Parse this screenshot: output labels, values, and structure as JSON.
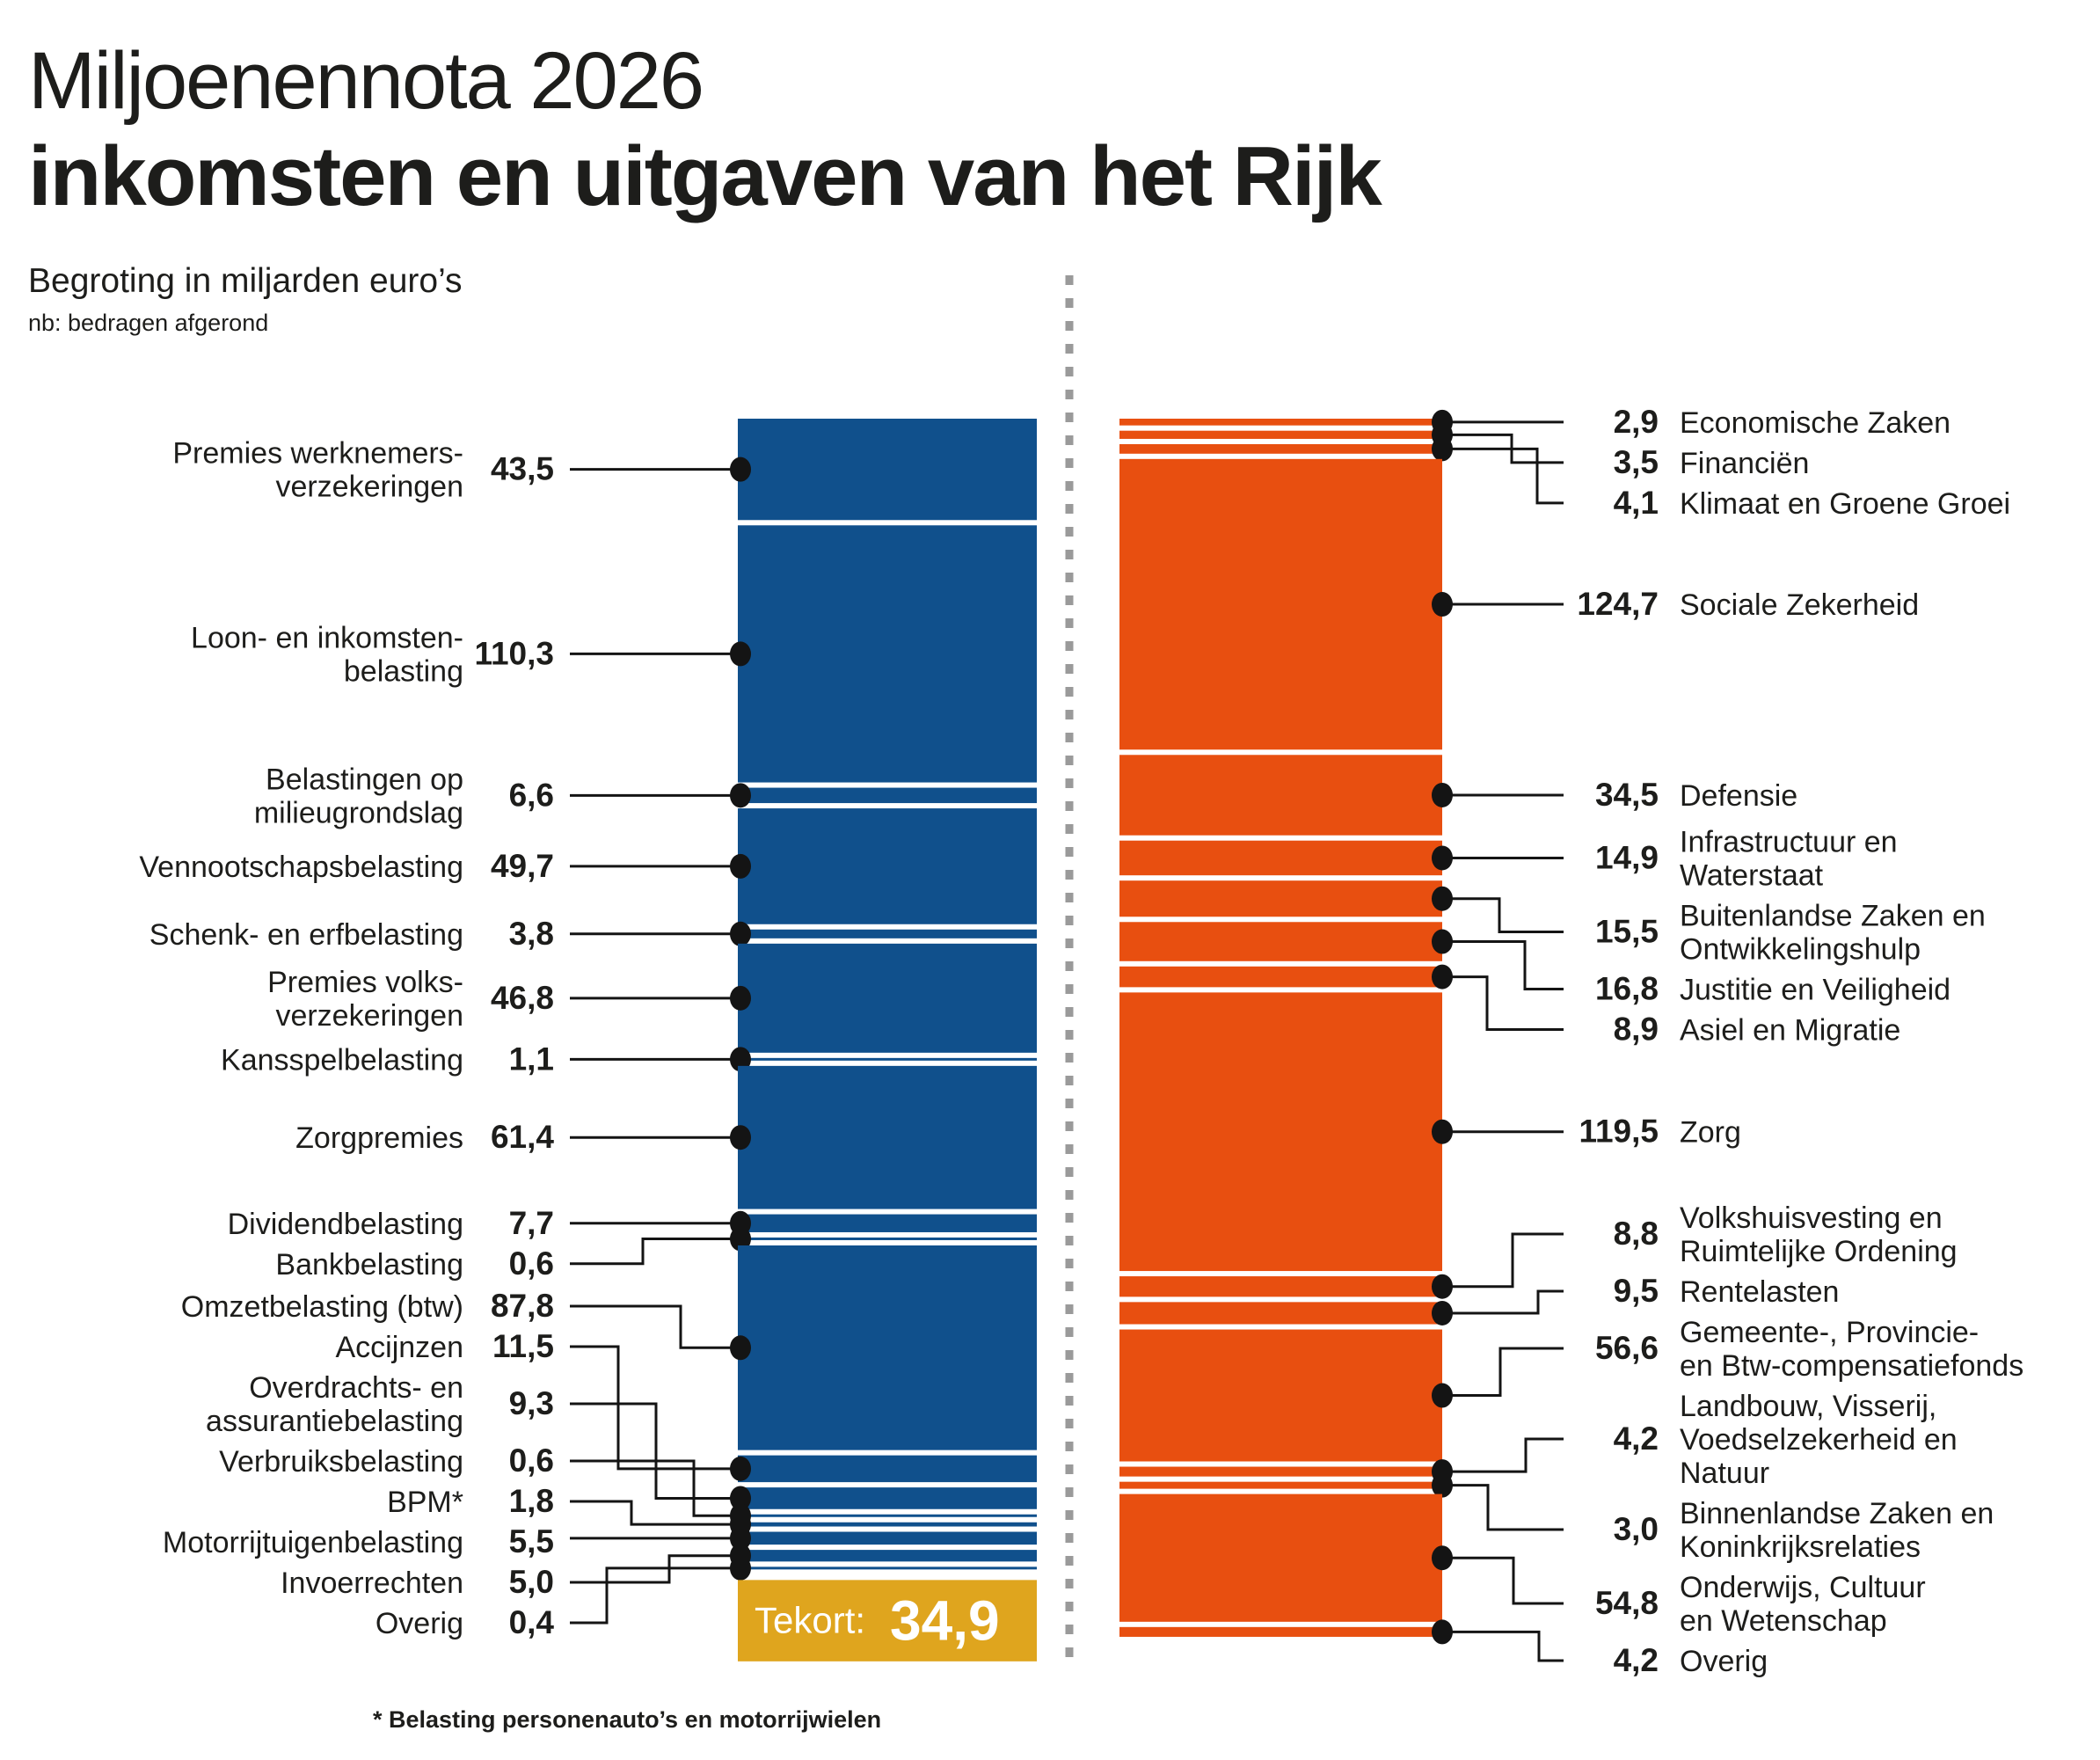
{
  "header": {
    "title_light": "Miljoenennota 2026",
    "title_bold": "inkomsten en uitgaven van het Rijk",
    "subtitle": "Begroting in miljarden euro’s",
    "note": "nb: bedragen afgerond"
  },
  "footnote": "* Belasting personenauto’s en motorrijwielen",
  "chart_data": {
    "type": "bar",
    "title": "Miljoenennota 2026 — inkomsten en uitgaven van het Rijk",
    "subtitle": "Begroting in miljarden euro’s (bedragen afgerond)",
    "unit": "miljarden euro's",
    "legend_position": "none",
    "grid": false,
    "colors": {
      "income": "#10508C",
      "expenses": "#E84F10",
      "deficit": "#DFA51E",
      "leader": "#141414",
      "divider": "#9A9A9A",
      "text": "#1D1D1B"
    },
    "income": {
      "name": "inkomsten",
      "items": [
        {
          "label": "Premies werknemers-\nverzekeringen",
          "value_text": "43,5",
          "value": 43.5
        },
        {
          "label": "Loon- en inkomsten-\nbelasting",
          "value_text": "110,3",
          "value": 110.3
        },
        {
          "label": "Belastingen op\nmilieugrondslag",
          "value_text": "6,6",
          "value": 6.6
        },
        {
          "label": "Vennootschapsbelasting",
          "value_text": "49,7",
          "value": 49.7
        },
        {
          "label": "Schenk- en erfbelasting",
          "value_text": "3,8",
          "value": 3.8
        },
        {
          "label": "Premies volks-\nverzekeringen",
          "value_text": "46,8",
          "value": 46.8
        },
        {
          "label": "Kansspelbelasting",
          "value_text": "1,1",
          "value": 1.1
        },
        {
          "label": "Zorgpremies",
          "value_text": "61,4",
          "value": 61.4
        },
        {
          "label": "Dividendbelasting",
          "value_text": "7,7",
          "value": 7.7
        },
        {
          "label": "Bankbelasting",
          "value_text": "0,6",
          "value": 0.6
        },
        {
          "label": "Omzetbelasting (btw)",
          "value_text": "87,8",
          "value": 87.8
        },
        {
          "label": "Accijnzen",
          "value_text": "11,5",
          "value": 11.5
        },
        {
          "label": "Overdrachts- en\nassurantiebelasting",
          "value_text": "9,3",
          "value": 9.3
        },
        {
          "label": "Verbruiksbelasting",
          "value_text": "0,6",
          "value": 0.6
        },
        {
          "label": "BPM*",
          "value_text": "1,8",
          "value": 1.8
        },
        {
          "label": "Motorrijtuigenbelasting",
          "value_text": "5,5",
          "value": 5.5
        },
        {
          "label": "Invoerrechten",
          "value_text": "5,0",
          "value": 5.0
        },
        {
          "label": "Overig",
          "value_text": "0,4",
          "value": 0.4
        }
      ]
    },
    "expenses": {
      "name": "uitgaven",
      "items": [
        {
          "label": "Economische Zaken",
          "value_text": "2,9",
          "value": 2.9
        },
        {
          "label": "Financiën",
          "value_text": "3,5",
          "value": 3.5
        },
        {
          "label": "Klimaat en Groene Groei",
          "value_text": "4,1",
          "value": 4.1
        },
        {
          "label": "Sociale Zekerheid",
          "value_text": "124,7",
          "value": 124.7
        },
        {
          "label": "Defensie",
          "value_text": "34,5",
          "value": 34.5
        },
        {
          "label": "Infrastructuur en\nWaterstaat",
          "value_text": "14,9",
          "value": 14.9
        },
        {
          "label": "Buitenlandse Zaken en\nOntwikkelingshulp",
          "value_text": "15,5",
          "value": 15.5
        },
        {
          "label": "Justitie en Veiligheid",
          "value_text": "16,8",
          "value": 16.8
        },
        {
          "label": "Asiel en Migratie",
          "value_text": "8,9",
          "value": 8.9
        },
        {
          "label": "Zorg",
          "value_text": "119,5",
          "value": 119.5
        },
        {
          "label": "Volkshuisvesting en\nRuimtelijke Ordening",
          "value_text": "8,8",
          "value": 8.8
        },
        {
          "label": "Rentelasten",
          "value_text": "9,5",
          "value": 9.5
        },
        {
          "label": "Gemeente-, Provincie-\nen Btw-compensatiefonds",
          "value_text": "56,6",
          "value": 56.6
        },
        {
          "label": "Landbouw, Visserij,\nVoedselzekerheid en\nNatuur",
          "value_text": "4,2",
          "value": 4.2
        },
        {
          "label": "Binnenlandse Zaken en\nKoninkrijksrelaties",
          "value_text": "3,0",
          "value": 3.0
        },
        {
          "label": "Onderwijs, Cultuur\nen Wetenschap",
          "value_text": "54,8",
          "value": 54.8
        },
        {
          "label": "Overig",
          "value_text": "4,2",
          "value": 4.2
        }
      ]
    },
    "deficit": {
      "label": "Tekort:",
      "value_text": "34,9",
      "value": 34.9
    }
  }
}
